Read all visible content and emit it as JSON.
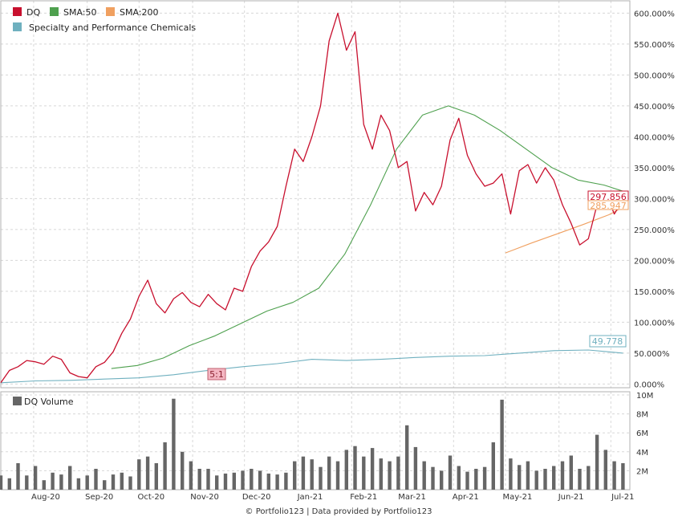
{
  "footer": "© Portfolio123 | Data provided by Portfolio123",
  "split_marker": "5:1",
  "legend": {
    "dq": "DQ",
    "sma50": "SMA:50",
    "sma200": "SMA:200",
    "sector": "Specialty and Performance Chemicals",
    "volume": "DQ Volume"
  },
  "value_tags": {
    "dq": "297.856",
    "sma200": "285.947",
    "sector": "49.778"
  },
  "colors": {
    "dq": "#c8102e",
    "sma50": "#4ea04e",
    "sma200": "#f0a060",
    "sector": "#6fb0bf",
    "volume": "#666666"
  },
  "chart_data": [
    {
      "type": "line",
      "ylim": [
        -0.06,
        6.2
      ],
      "y_ticks": [
        "0.000%",
        "50.000%",
        "100.000%",
        "150.000%",
        "200.000%",
        "250.000%",
        "300.000%",
        "350.000%",
        "400.000%",
        "450.000%",
        "500.000%",
        "550.000%",
        "600.000%"
      ],
      "x_ticks": [
        "Aug-20",
        "Sep-20",
        "Oct-20",
        "Nov-20",
        "Dec-20",
        "Jan-21",
        "Feb-21",
        "Mar-21",
        "Apr-21",
        "May-21",
        "Jun-21",
        "Jul-21"
      ],
      "x_start": "2020-07-13",
      "x_end": "2021-07-12",
      "x_tick_dates": [
        "2020-08-01",
        "2020-09-01",
        "2020-10-01",
        "2020-11-01",
        "2020-12-01",
        "2021-01-01",
        "2021-02-01",
        "2021-03-01",
        "2021-04-01",
        "2021-05-01",
        "2021-06-01",
        "2021-07-01"
      ],
      "series": [
        {
          "name": "DQ",
          "x": [
            "2020-07-13",
            "2020-07-18",
            "2020-07-23",
            "2020-07-28",
            "2020-08-02",
            "2020-08-07",
            "2020-08-12",
            "2020-08-17",
            "2020-08-22",
            "2020-08-27",
            "2020-09-01",
            "2020-09-06",
            "2020-09-11",
            "2020-09-16",
            "2020-09-21",
            "2020-09-26",
            "2020-10-01",
            "2020-10-06",
            "2020-10-11",
            "2020-10-16",
            "2020-10-21",
            "2020-10-26",
            "2020-10-31",
            "2020-11-05",
            "2020-11-10",
            "2020-11-15",
            "2020-11-20",
            "2020-11-25",
            "2020-11-30",
            "2020-12-05",
            "2020-12-10",
            "2020-12-15",
            "2020-12-20",
            "2020-12-25",
            "2020-12-30",
            "2021-01-04",
            "2021-01-09",
            "2021-01-14",
            "2021-01-19",
            "2021-01-24",
            "2021-01-29",
            "2021-02-03",
            "2021-02-08",
            "2021-02-13",
            "2021-02-18",
            "2021-02-23",
            "2021-02-28",
            "2021-03-05",
            "2021-03-10",
            "2021-03-15",
            "2021-03-20",
            "2021-03-25",
            "2021-03-30",
            "2021-04-04",
            "2021-04-09",
            "2021-04-14",
            "2021-04-19",
            "2021-04-24",
            "2021-04-29",
            "2021-05-04",
            "2021-05-09",
            "2021-05-14",
            "2021-05-19",
            "2021-05-24",
            "2021-05-29",
            "2021-06-03",
            "2021-06-08",
            "2021-06-13",
            "2021-06-18",
            "2021-06-23",
            "2021-06-28",
            "2021-07-03",
            "2021-07-08"
          ],
          "values": [
            0.02,
            0.22,
            0.28,
            0.38,
            0.36,
            0.32,
            0.45,
            0.4,
            0.18,
            0.12,
            0.1,
            0.28,
            0.35,
            0.52,
            0.82,
            1.05,
            1.42,
            1.68,
            1.3,
            1.15,
            1.38,
            1.48,
            1.32,
            1.25,
            1.45,
            1.3,
            1.2,
            1.55,
            1.5,
            1.9,
            2.15,
            2.3,
            2.55,
            3.2,
            3.8,
            3.6,
            4.0,
            4.5,
            5.55,
            6.0,
            5.4,
            5.7,
            4.2,
            3.8,
            4.35,
            4.1,
            3.5,
            3.6,
            2.8,
            3.1,
            2.9,
            3.2,
            3.95,
            4.3,
            3.7,
            3.4,
            3.2,
            3.25,
            3.4,
            2.75,
            3.45,
            3.55,
            3.25,
            3.5,
            3.3,
            2.9,
            2.6,
            2.25,
            2.35,
            2.9,
            3.1,
            2.75,
            2.98
          ]
        },
        {
          "name": "SMA:50",
          "x": [
            "2020-09-15",
            "2020-09-30",
            "2020-10-15",
            "2020-10-30",
            "2020-11-14",
            "2020-11-29",
            "2020-12-14",
            "2020-12-29",
            "2021-01-13",
            "2021-01-28",
            "2021-02-12",
            "2021-02-27",
            "2021-03-14",
            "2021-03-29",
            "2021-04-13",
            "2021-04-28",
            "2021-05-13",
            "2021-05-28",
            "2021-06-12",
            "2021-06-27",
            "2021-07-08"
          ],
          "values": [
            0.25,
            0.3,
            0.42,
            0.62,
            0.78,
            0.98,
            1.18,
            1.32,
            1.55,
            2.1,
            2.9,
            3.8,
            4.35,
            4.5,
            4.35,
            4.1,
            3.8,
            3.5,
            3.3,
            3.22,
            3.12
          ]
        },
        {
          "name": "SMA:200",
          "x": [
            "2021-05-01",
            "2021-05-16",
            "2021-05-31",
            "2021-06-15",
            "2021-06-30",
            "2021-07-08"
          ],
          "values": [
            2.12,
            2.28,
            2.43,
            2.58,
            2.74,
            2.86
          ]
        },
        {
          "name": "Specialty and Performance Chemicals",
          "x": [
            "2020-07-13",
            "2020-08-02",
            "2020-08-22",
            "2020-09-11",
            "2020-10-01",
            "2020-10-21",
            "2020-11-10",
            "2020-11-30",
            "2020-12-20",
            "2021-01-09",
            "2021-01-29",
            "2021-02-18",
            "2021-03-10",
            "2021-03-30",
            "2021-04-19",
            "2021-05-09",
            "2021-05-29",
            "2021-06-18",
            "2021-07-08"
          ],
          "values": [
            0.02,
            0.05,
            0.06,
            0.08,
            0.1,
            0.15,
            0.22,
            0.28,
            0.33,
            0.4,
            0.38,
            0.4,
            0.43,
            0.45,
            0.46,
            0.5,
            0.54,
            0.55,
            0.5
          ]
        }
      ]
    },
    {
      "type": "bar",
      "title": "DQ Volume",
      "ylim": [
        0,
        10000000
      ],
      "y_ticks": [
        "2M",
        "4M",
        "6M",
        "8M",
        "10M"
      ],
      "x": [
        "2020-07-13",
        "2020-07-18",
        "2020-07-23",
        "2020-07-28",
        "2020-08-02",
        "2020-08-07",
        "2020-08-12",
        "2020-08-17",
        "2020-08-22",
        "2020-08-27",
        "2020-09-01",
        "2020-09-06",
        "2020-09-11",
        "2020-09-16",
        "2020-09-21",
        "2020-09-26",
        "2020-10-01",
        "2020-10-06",
        "2020-10-11",
        "2020-10-16",
        "2020-10-21",
        "2020-10-26",
        "2020-10-31",
        "2020-11-05",
        "2020-11-10",
        "2020-11-15",
        "2020-11-20",
        "2020-11-25",
        "2020-11-30",
        "2020-12-05",
        "2020-12-10",
        "2020-12-15",
        "2020-12-20",
        "2020-12-25",
        "2020-12-30",
        "2021-01-04",
        "2021-01-09",
        "2021-01-14",
        "2021-01-19",
        "2021-01-24",
        "2021-01-29",
        "2021-02-03",
        "2021-02-08",
        "2021-02-13",
        "2021-02-18",
        "2021-02-23",
        "2021-02-28",
        "2021-03-05",
        "2021-03-10",
        "2021-03-15",
        "2021-03-20",
        "2021-03-25",
        "2021-03-30",
        "2021-04-04",
        "2021-04-09",
        "2021-04-14",
        "2021-04-19",
        "2021-04-24",
        "2021-04-29",
        "2021-05-04",
        "2021-05-09",
        "2021-05-14",
        "2021-05-19",
        "2021-05-24",
        "2021-05-29",
        "2021-06-03",
        "2021-06-08",
        "2021-06-13",
        "2021-06-18",
        "2021-06-23",
        "2021-06-28",
        "2021-07-03",
        "2021-07-08"
      ],
      "values": [
        1500000,
        1200000,
        2800000,
        1500000,
        2500000,
        1000000,
        1800000,
        1600000,
        2500000,
        1200000,
        1500000,
        2200000,
        1000000,
        1600000,
        1800000,
        1400000,
        3200000,
        3500000,
        2800000,
        5000000,
        9600000,
        4000000,
        3000000,
        2200000,
        2200000,
        1500000,
        1700000,
        1800000,
        2000000,
        2200000,
        2000000,
        1700000,
        1600000,
        1800000,
        3000000,
        3500000,
        3200000,
        2400000,
        3500000,
        3000000,
        4200000,
        4600000,
        3500000,
        4400000,
        3300000,
        3000000,
        3500000,
        6800000,
        4500000,
        3000000,
        2400000,
        2000000,
        3600000,
        2500000,
        1900000,
        2200000,
        2400000,
        5000000,
        9500000,
        3300000,
        2600000,
        3000000,
        2000000,
        2200000,
        2500000,
        3000000,
        3600000,
        2200000,
        2500000,
        5800000,
        4200000,
        3000000,
        2800000
      ]
    }
  ]
}
